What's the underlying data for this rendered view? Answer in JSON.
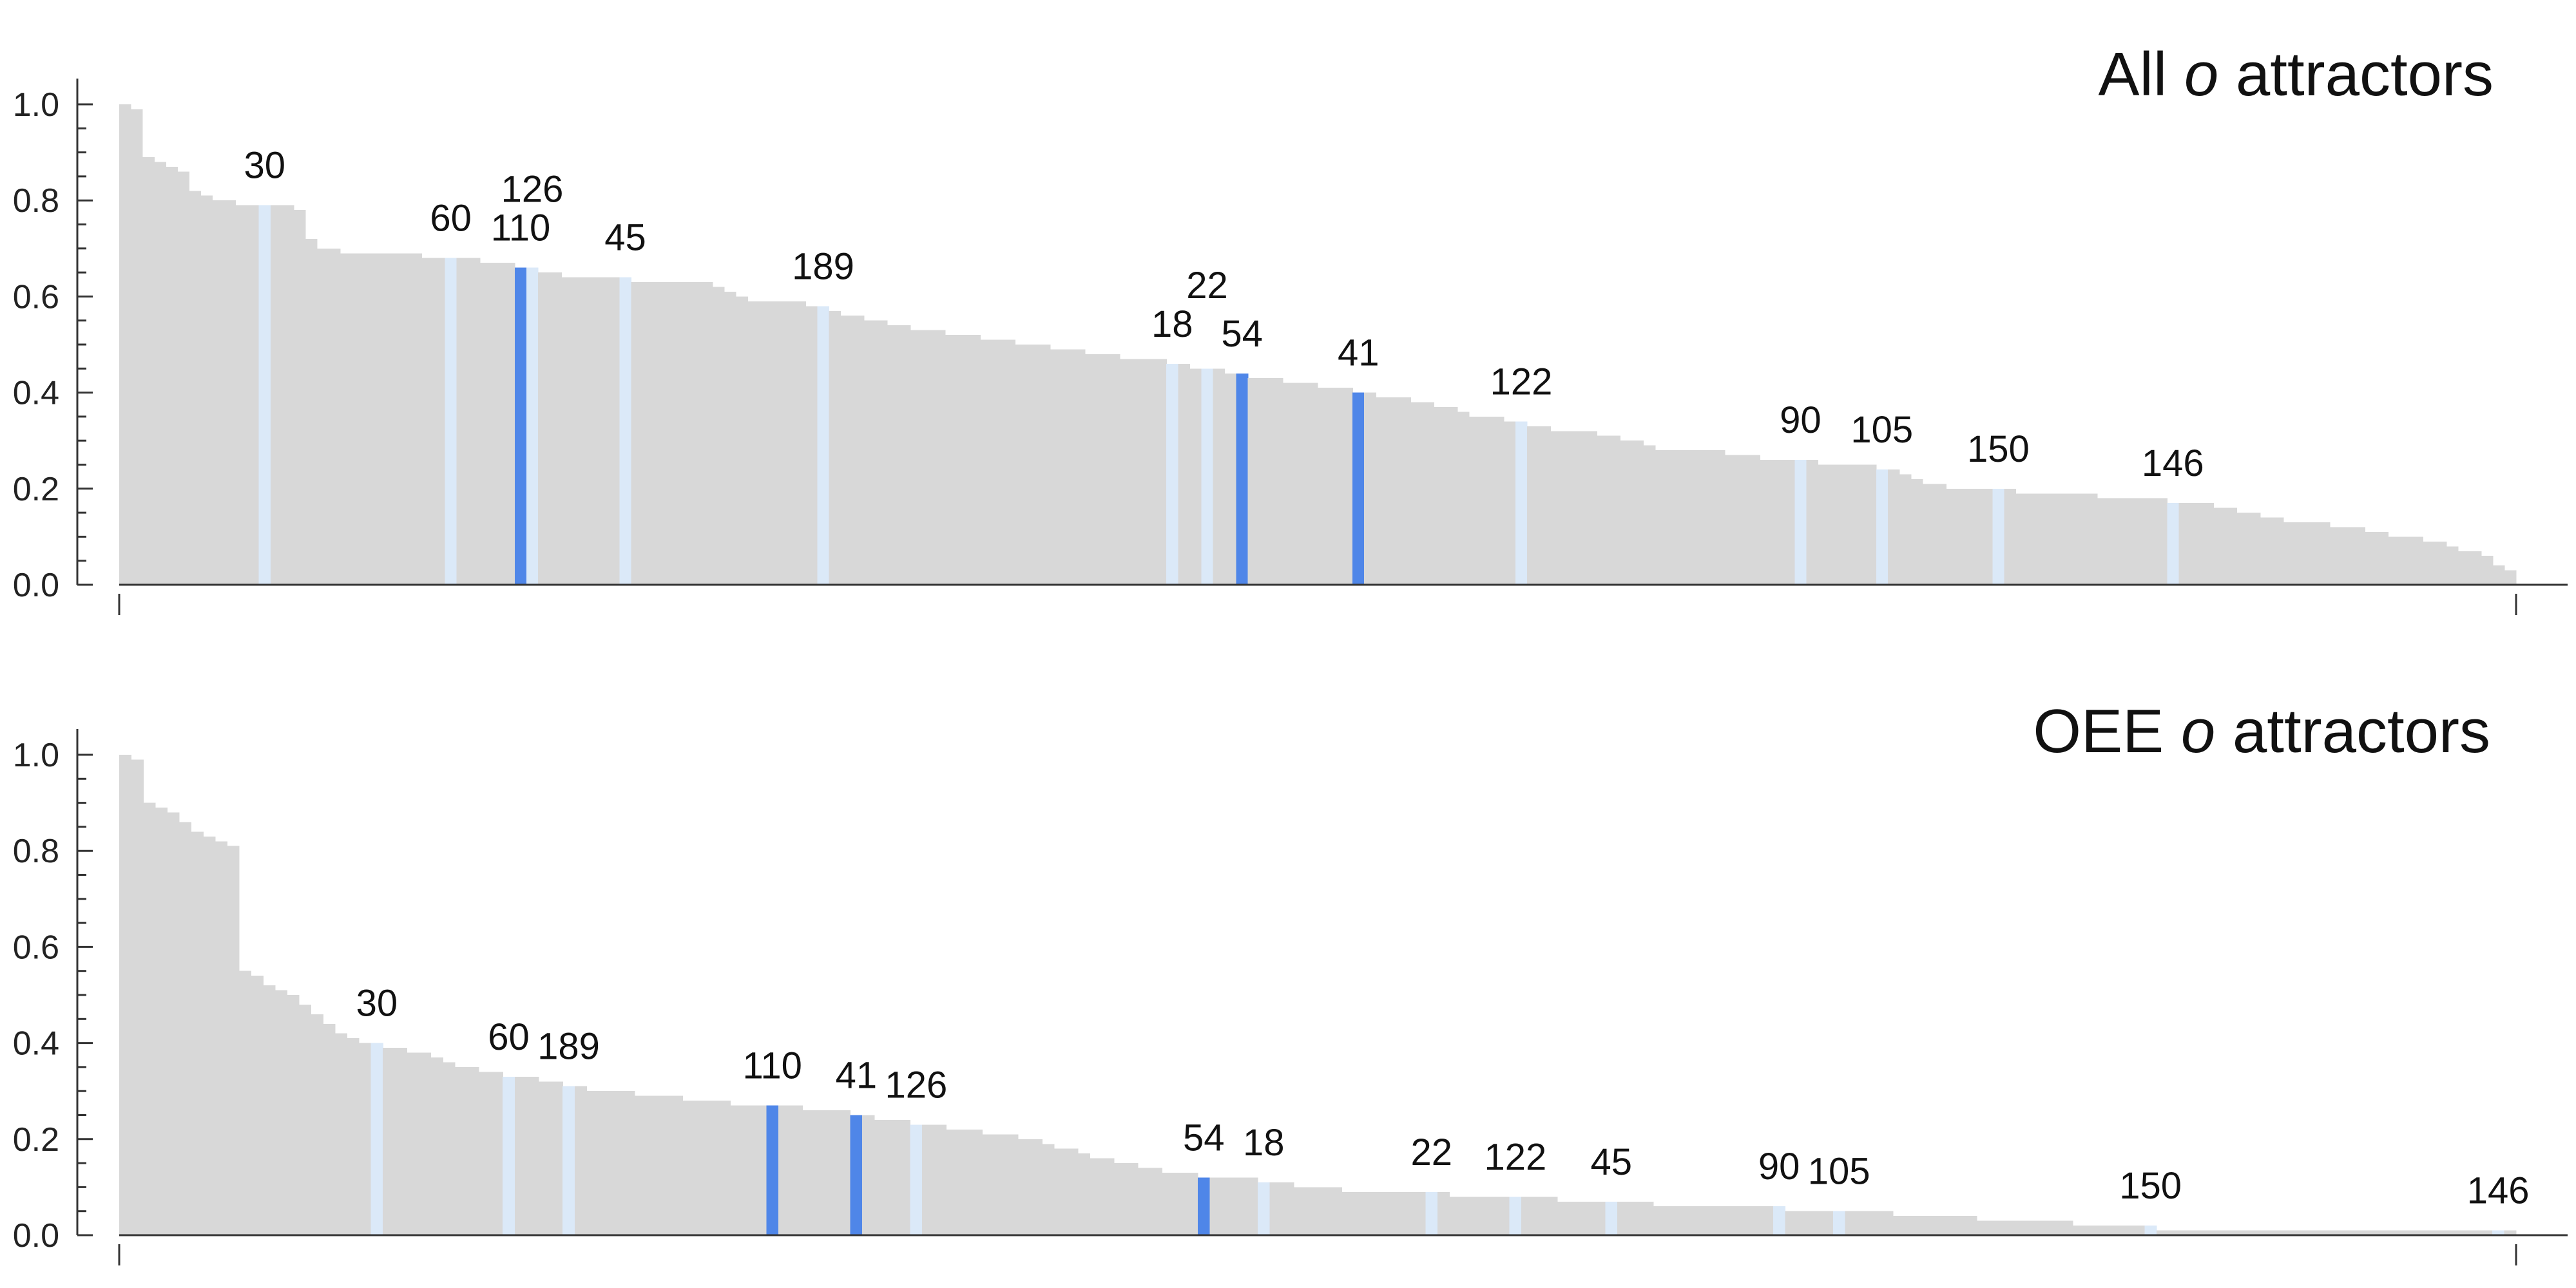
{
  "chart_data": [
    {
      "type": "bar",
      "title": "All o attractors",
      "title_parts": {
        "prefix": "All ",
        "italic": "o",
        "suffix": " attractors"
      },
      "ylim": [
        0,
        1.0
      ],
      "yticks": [
        "0.0",
        "0.2",
        "0.4",
        "0.6",
        "0.8",
        "1.0"
      ],
      "grid": false,
      "bar_count": 200,
      "values": [
        1.0,
        0.99,
        0.89,
        0.88,
        0.87,
        0.86,
        0.82,
        0.81,
        0.8,
        0.8,
        0.79,
        0.79,
        0.79,
        0.79,
        0.79,
        0.78,
        0.72,
        0.7,
        0.7,
        0.69,
        0.69,
        0.69,
        0.69,
        0.69,
        0.69,
        0.69,
        0.68,
        0.68,
        0.68,
        0.68,
        0.68,
        0.67,
        0.67,
        0.67,
        0.66,
        0.66,
        0.65,
        0.65,
        0.64,
        0.64,
        0.64,
        0.64,
        0.64,
        0.64,
        0.63,
        0.63,
        0.63,
        0.63,
        0.63,
        0.63,
        0.63,
        0.62,
        0.61,
        0.6,
        0.59,
        0.59,
        0.59,
        0.59,
        0.59,
        0.58,
        0.58,
        0.57,
        0.56,
        0.56,
        0.55,
        0.55,
        0.54,
        0.54,
        0.53,
        0.53,
        0.53,
        0.52,
        0.52,
        0.52,
        0.51,
        0.51,
        0.51,
        0.5,
        0.5,
        0.5,
        0.49,
        0.49,
        0.49,
        0.48,
        0.48,
        0.48,
        0.47,
        0.47,
        0.47,
        0.47,
        0.46,
        0.46,
        0.45,
        0.45,
        0.45,
        0.44,
        0.44,
        0.43,
        0.43,
        0.43,
        0.42,
        0.42,
        0.42,
        0.41,
        0.41,
        0.41,
        0.4,
        0.4,
        0.39,
        0.39,
        0.39,
        0.38,
        0.38,
        0.37,
        0.37,
        0.36,
        0.35,
        0.35,
        0.35,
        0.34,
        0.34,
        0.33,
        0.33,
        0.32,
        0.32,
        0.32,
        0.32,
        0.31,
        0.31,
        0.3,
        0.3,
        0.29,
        0.28,
        0.28,
        0.28,
        0.28,
        0.28,
        0.28,
        0.27,
        0.27,
        0.27,
        0.26,
        0.26,
        0.26,
        0.26,
        0.26,
        0.25,
        0.25,
        0.25,
        0.25,
        0.25,
        0.24,
        0.24,
        0.23,
        0.22,
        0.21,
        0.21,
        0.2,
        0.2,
        0.2,
        0.2,
        0.2,
        0.2,
        0.19,
        0.19,
        0.19,
        0.19,
        0.19,
        0.19,
        0.19,
        0.18,
        0.18,
        0.18,
        0.18,
        0.18,
        0.18,
        0.17,
        0.17,
        0.17,
        0.17,
        0.16,
        0.16,
        0.15,
        0.15,
        0.14,
        0.14,
        0.13,
        0.13,
        0.13,
        0.13,
        0.12,
        0.12,
        0.12,
        0.11,
        0.11,
        0.1,
        0.1,
        0.1,
        0.09,
        0.09,
        0.08,
        0.07,
        0.07,
        0.06,
        0.04,
        0.03
      ],
      "annotations": [
        {
          "label": "30",
          "index": 12,
          "highlight": "light"
        },
        {
          "label": "60",
          "index": 28,
          "highlight": "light"
        },
        {
          "label": "110",
          "index": 34,
          "highlight": "dark"
        },
        {
          "label": "126",
          "index": 35,
          "highlight": "light"
        },
        {
          "label": "45",
          "index": 43,
          "highlight": "light"
        },
        {
          "label": "189",
          "index": 60,
          "highlight": "light"
        },
        {
          "label": "18",
          "index": 90,
          "highlight": "light"
        },
        {
          "label": "22",
          "index": 93,
          "highlight": "light"
        },
        {
          "label": "54",
          "index": 96,
          "highlight": "dark"
        },
        {
          "label": "41",
          "index": 106,
          "highlight": "dark"
        },
        {
          "label": "122",
          "index": 120,
          "highlight": "light"
        },
        {
          "label": "90",
          "index": 144,
          "highlight": "light"
        },
        {
          "label": "105",
          "index": 151,
          "highlight": "light"
        },
        {
          "label": "150",
          "index": 161,
          "highlight": "light"
        },
        {
          "label": "146",
          "index": 176,
          "highlight": "light"
        }
      ],
      "colors": {
        "bar": "#d8d8d8",
        "highlight_light": "#dbe9f8",
        "highlight_dark": "#4f86e8"
      }
    },
    {
      "type": "bar",
      "title": "OEE o attractors",
      "title_parts": {
        "prefix": "OEE ",
        "italic": "o",
        "suffix": " attractors"
      },
      "ylim": [
        0,
        1.0
      ],
      "yticks": [
        "0.0",
        "0.2",
        "0.4",
        "0.6",
        "0.8",
        "1.0"
      ],
      "grid": false,
      "bar_count": 200,
      "values": [
        1.0,
        0.99,
        0.9,
        0.89,
        0.88,
        0.86,
        0.84,
        0.83,
        0.82,
        0.81,
        0.55,
        0.54,
        0.52,
        0.51,
        0.5,
        0.48,
        0.46,
        0.44,
        0.42,
        0.41,
        0.4,
        0.4,
        0.39,
        0.39,
        0.38,
        0.38,
        0.37,
        0.36,
        0.35,
        0.35,
        0.34,
        0.34,
        0.33,
        0.33,
        0.33,
        0.32,
        0.32,
        0.31,
        0.31,
        0.3,
        0.3,
        0.3,
        0.3,
        0.29,
        0.29,
        0.29,
        0.29,
        0.28,
        0.28,
        0.28,
        0.28,
        0.27,
        0.27,
        0.27,
        0.27,
        0.27,
        0.27,
        0.26,
        0.26,
        0.26,
        0.26,
        0.25,
        0.25,
        0.24,
        0.24,
        0.24,
        0.23,
        0.23,
        0.23,
        0.22,
        0.22,
        0.22,
        0.21,
        0.21,
        0.21,
        0.2,
        0.2,
        0.19,
        0.18,
        0.18,
        0.17,
        0.16,
        0.16,
        0.15,
        0.15,
        0.14,
        0.14,
        0.13,
        0.13,
        0.13,
        0.12,
        0.12,
        0.12,
        0.12,
        0.12,
        0.11,
        0.11,
        0.11,
        0.1,
        0.1,
        0.1,
        0.1,
        0.09,
        0.09,
        0.09,
        0.09,
        0.09,
        0.09,
        0.09,
        0.09,
        0.09,
        0.08,
        0.08,
        0.08,
        0.08,
        0.08,
        0.08,
        0.08,
        0.08,
        0.08,
        0.07,
        0.07,
        0.07,
        0.07,
        0.07,
        0.07,
        0.07,
        0.07,
        0.06,
        0.06,
        0.06,
        0.06,
        0.06,
        0.06,
        0.06,
        0.06,
        0.06,
        0.06,
        0.06,
        0.05,
        0.05,
        0.05,
        0.05,
        0.05,
        0.05,
        0.05,
        0.05,
        0.05,
        0.04,
        0.04,
        0.04,
        0.04,
        0.04,
        0.04,
        0.04,
        0.03,
        0.03,
        0.03,
        0.03,
        0.03,
        0.03,
        0.03,
        0.03,
        0.02,
        0.02,
        0.02,
        0.02,
        0.02,
        0.02,
        0.02,
        0.01,
        0.01,
        0.01,
        0.01,
        0.01,
        0.01,
        0.01,
        0.01,
        0.01,
        0.01,
        0.01,
        0.01,
        0.01,
        0.01,
        0.01,
        0.01,
        0.01,
        0.01,
        0.01,
        0.01,
        0.01,
        0.01,
        0.01,
        0.01,
        0.01,
        0.01,
        0.01,
        0.01,
        0.01,
        0.01
      ],
      "annotations": [
        {
          "label": "30",
          "index": 21,
          "highlight": "light"
        },
        {
          "label": "60",
          "index": 32,
          "highlight": "light"
        },
        {
          "label": "189",
          "index": 37,
          "highlight": "light"
        },
        {
          "label": "110",
          "index": 54,
          "highlight": "dark"
        },
        {
          "label": "41",
          "index": 61,
          "highlight": "dark"
        },
        {
          "label": "126",
          "index": 66,
          "highlight": "light"
        },
        {
          "label": "54",
          "index": 90,
          "highlight": "dark"
        },
        {
          "label": "18",
          "index": 95,
          "highlight": "light"
        },
        {
          "label": "22",
          "index": 109,
          "highlight": "light"
        },
        {
          "label": "122",
          "index": 116,
          "highlight": "light"
        },
        {
          "label": "45",
          "index": 124,
          "highlight": "light"
        },
        {
          "label": "90",
          "index": 138,
          "highlight": "light"
        },
        {
          "label": "105",
          "index": 143,
          "highlight": "light"
        },
        {
          "label": "150",
          "index": 169,
          "highlight": "light"
        },
        {
          "label": "146",
          "index": 198,
          "highlight": "light"
        }
      ],
      "colors": {
        "bar": "#d8d8d8",
        "highlight_light": "#dbe9f8",
        "highlight_dark": "#4f86e8"
      }
    }
  ]
}
